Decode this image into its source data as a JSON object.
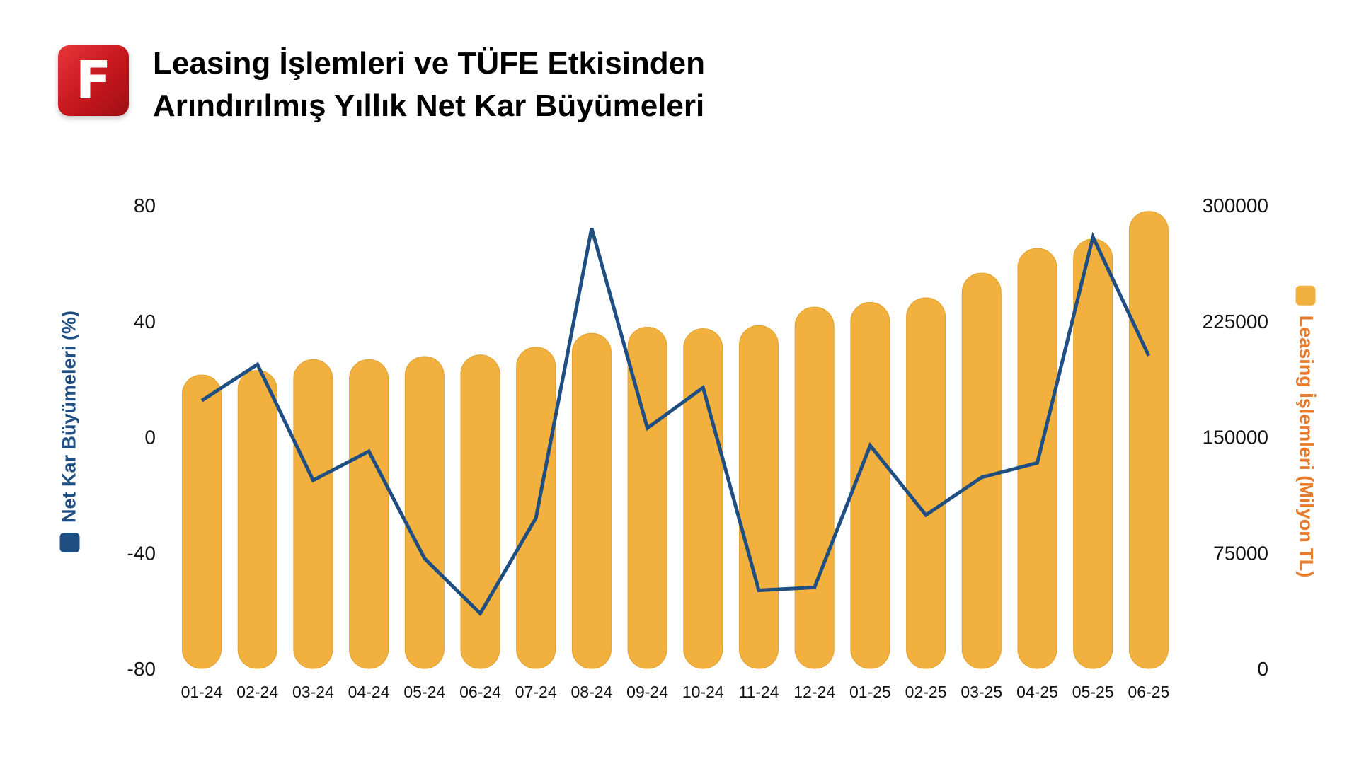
{
  "logo": {
    "letter": "F"
  },
  "title": {
    "line1": "Leasing İşlemleri ve TÜFE Etkisinden",
    "line2": "Arındırılmış Yıllık Net Kar Büyümeleri"
  },
  "colors": {
    "line": "#1f4e82",
    "bar": "#f2b13e",
    "bar_stroke": "#e0a02e",
    "right_label": "#e87b2c",
    "logo": "#c4161c"
  },
  "chart_data": {
    "type": "bar+line",
    "categories": [
      "01-24",
      "02-24",
      "03-24",
      "04-24",
      "05-24",
      "06-24",
      "07-24",
      "08-24",
      "09-24",
      "10-24",
      "11-24",
      "12-24",
      "01-25",
      "02-25",
      "03-25",
      "04-25",
      "05-25",
      "06-25"
    ],
    "series": [
      {
        "name": "Leasing İşlemleri (Milyon TL)",
        "type": "bar",
        "axis": "right",
        "values": [
          190000,
          193000,
          200000,
          200000,
          202000,
          203000,
          208000,
          217000,
          221000,
          220000,
          222000,
          234000,
          237000,
          240000,
          256000,
          272000,
          278000,
          296000
        ]
      },
      {
        "name": "Net Kar Büyümeleri (%)",
        "type": "line",
        "axis": "left",
        "values": [
          12.5,
          25,
          -15,
          -5,
          -42,
          -61,
          -28,
          72,
          3,
          17,
          -53,
          -52,
          -3,
          -27,
          -14,
          -9,
          69,
          28
        ]
      }
    ],
    "ylabel_left": "Net Kar Büyümeleri (%)",
    "ylabel_right": "Leasing İşlemleri (Milyon TL)",
    "ylim_left": [
      -80,
      80
    ],
    "ylim_right": [
      0,
      300000
    ],
    "yticks_left": [
      "80",
      "40",
      "0",
      "-40",
      "-80"
    ],
    "yticks_right": [
      "300000",
      "225000",
      "150000",
      "75000",
      "0"
    ],
    "grid": false,
    "legend": "axis-labels"
  }
}
